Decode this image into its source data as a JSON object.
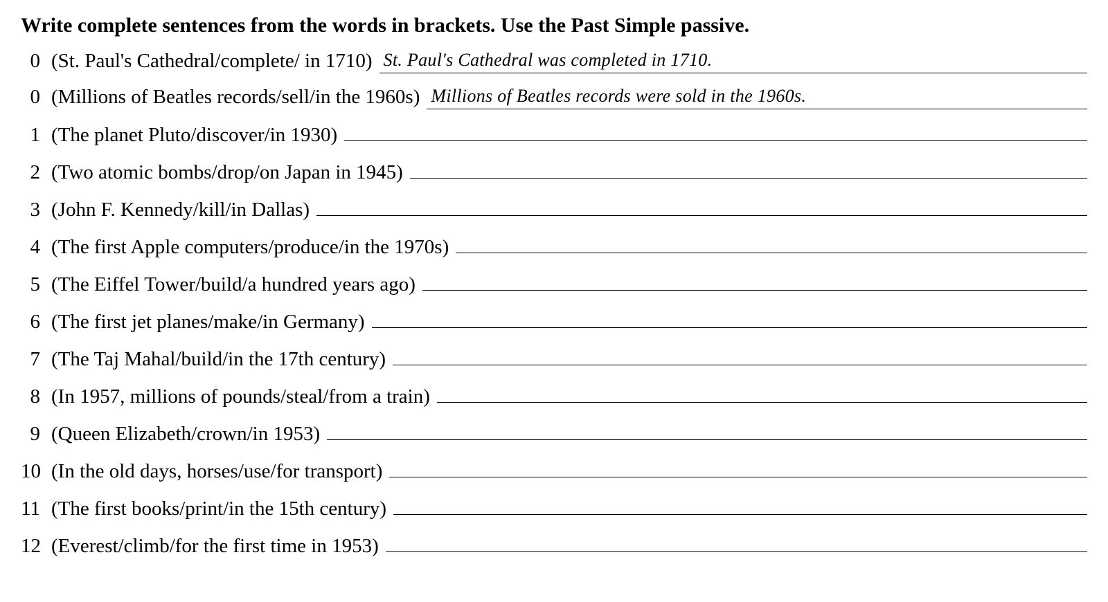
{
  "instruction": "Write complete sentences from the words in brackets. Use the Past Simple passive.",
  "items": [
    {
      "num": "0",
      "prompt": "(St. Paul's Cathedral/complete/ in 1710)",
      "answer": "St. Paul's Cathedral was completed in 1710."
    },
    {
      "num": "0",
      "prompt": "(Millions of Beatles records/sell/in the 1960s)",
      "answer": "Millions of Beatles records were sold in the 1960s."
    },
    {
      "num": "1",
      "prompt": "(The planet Pluto/discover/in 1930)",
      "answer": ""
    },
    {
      "num": "2",
      "prompt": "(Two atomic bombs/drop/on Japan in 1945)",
      "answer": ""
    },
    {
      "num": "3",
      "prompt": "(John F. Kennedy/kill/in Dallas)",
      "answer": ""
    },
    {
      "num": "4",
      "prompt": "(The first Apple computers/produce/in the 1970s)",
      "answer": ""
    },
    {
      "num": "5",
      "prompt": "(The Eiffel Tower/build/a hundred years ago)",
      "answer": ""
    },
    {
      "num": "6",
      "prompt": "(The first jet planes/make/in Germany)",
      "answer": ""
    },
    {
      "num": "7",
      "prompt": "(The Taj Mahal/build/in the 17th century)",
      "answer": ""
    },
    {
      "num": "8",
      "prompt": "(In 1957, millions of pounds/steal/from a train)",
      "answer": ""
    },
    {
      "num": "9",
      "prompt": "(Queen Elizabeth/crown/in 1953)",
      "answer": ""
    },
    {
      "num": "10",
      "prompt": "(In the old days, horses/use/for transport)",
      "answer": ""
    },
    {
      "num": "11",
      "prompt": "(The first books/print/in the 15th century)",
      "answer": ""
    },
    {
      "num": "12",
      "prompt": "(Everest/climb/for the first time in 1953)",
      "answer": ""
    }
  ],
  "style": {
    "background_color": "#ffffff",
    "text_color": "#000000",
    "line_color": "#000000",
    "instruction_fontsize": 30,
    "body_fontsize": 29,
    "handwritten_fontsize": 26,
    "font_family_main": "Times New Roman",
    "font_family_handwritten": "Comic Sans MS"
  }
}
